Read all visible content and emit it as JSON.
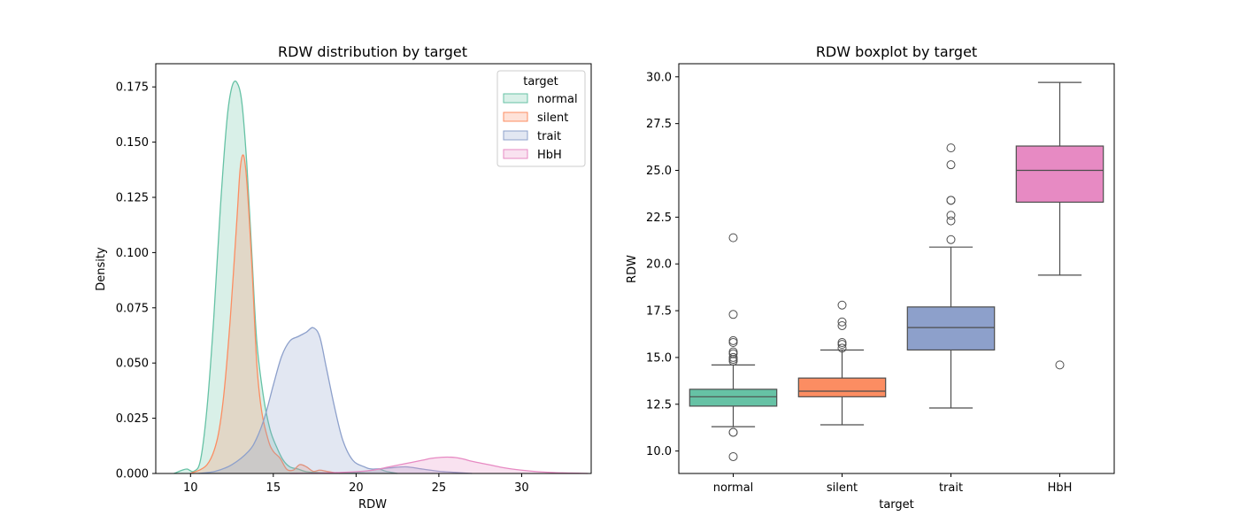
{
  "chart_data": [
    {
      "type": "area",
      "title": "RDW distribution by target",
      "xlabel": "RDW",
      "ylabel": "Density",
      "xlim": [
        7.9,
        34.2
      ],
      "ylim": [
        0,
        0.1855
      ],
      "xticks": [
        "10",
        "15",
        "20",
        "25",
        "30"
      ],
      "xtick_values": [
        10,
        15,
        20,
        25,
        30
      ],
      "yticks": [
        "0.000",
        "0.025",
        "0.050",
        "0.075",
        "0.100",
        "0.125",
        "0.150",
        "0.175"
      ],
      "ytick_values": [
        0,
        0.025,
        0.05,
        0.075,
        0.1,
        0.125,
        0.15,
        0.175
      ],
      "legend": {
        "title": "target",
        "placement": "upper-right",
        "entries": [
          "normal",
          "silent",
          "trait",
          "HbH"
        ]
      },
      "grid": false,
      "series": [
        {
          "name": "normal",
          "color": "#66c2a5",
          "x": [
            9.0,
            9.5,
            9.8,
            10.2,
            10.6,
            11.0,
            11.4,
            11.8,
            12.2,
            12.5,
            12.8,
            13.1,
            13.4,
            13.7,
            14.0,
            14.4,
            14.8,
            15.2,
            15.6,
            16.0,
            16.5,
            17.0,
            18.0,
            19.0,
            20.0,
            21.0,
            21.4,
            21.8,
            22.5
          ],
          "y": [
            0.0,
            0.0015,
            0.002,
            0.001,
            0.006,
            0.03,
            0.07,
            0.12,
            0.16,
            0.175,
            0.177,
            0.168,
            0.14,
            0.1,
            0.06,
            0.035,
            0.02,
            0.012,
            0.006,
            0.003,
            0.002,
            0.0008,
            0.0003,
            0.0002,
            0.0005,
            0.0015,
            0.002,
            0.001,
            0.0
          ]
        },
        {
          "name": "silent",
          "color": "#fc8d62",
          "x": [
            10.0,
            11.0,
            11.6,
            12.0,
            12.4,
            12.8,
            13.0,
            13.2,
            13.4,
            13.7,
            14.0,
            14.3,
            14.7,
            15.0,
            15.4,
            15.8,
            16.2,
            16.6,
            17.0,
            17.4,
            17.8,
            18.2,
            18.6,
            19.0
          ],
          "y": [
            0.0,
            0.004,
            0.015,
            0.035,
            0.07,
            0.115,
            0.138,
            0.144,
            0.132,
            0.095,
            0.05,
            0.028,
            0.015,
            0.01,
            0.007,
            0.002,
            0.0015,
            0.004,
            0.003,
            0.001,
            0.0015,
            0.001,
            0.0005,
            0.0
          ]
        },
        {
          "name": "trait",
          "color": "#8da0cb",
          "x": [
            10.5,
            11.5,
            12.5,
            13.5,
            14.0,
            14.5,
            15.0,
            15.5,
            16.0,
            16.5,
            17.0,
            17.4,
            17.8,
            18.2,
            18.7,
            19.2,
            19.8,
            20.5,
            21.0,
            22.0,
            23.0,
            24.0,
            25.0,
            26.0,
            27.0
          ],
          "y": [
            0.0,
            0.001,
            0.004,
            0.01,
            0.016,
            0.026,
            0.04,
            0.053,
            0.06,
            0.062,
            0.064,
            0.066,
            0.062,
            0.048,
            0.03,
            0.015,
            0.006,
            0.003,
            0.002,
            0.0025,
            0.003,
            0.002,
            0.001,
            0.0005,
            0.0
          ]
        },
        {
          "name": "HbH",
          "color": "#e78ac3",
          "x": [
            16.0,
            18.0,
            20.0,
            21.0,
            22.0,
            23.0,
            24.0,
            24.5,
            25.0,
            25.5,
            26.0,
            26.5,
            27.0,
            28.0,
            29.0,
            30.0,
            31.0,
            32.0,
            33.0,
            34.0
          ],
          "y": [
            0.0,
            0.0002,
            0.0008,
            0.0015,
            0.003,
            0.0045,
            0.006,
            0.0068,
            0.0072,
            0.0074,
            0.0072,
            0.0065,
            0.0055,
            0.004,
            0.0025,
            0.0015,
            0.0008,
            0.0004,
            0.0002,
            0.0
          ]
        }
      ]
    },
    {
      "type": "boxplot",
      "title": "RDW boxplot by target",
      "xlabel": "target",
      "ylabel": "RDW",
      "ylim": [
        8.8,
        30.7
      ],
      "categories": [
        "normal",
        "silent",
        "trait",
        "HbH"
      ],
      "yticks": [
        "10.0",
        "12.5",
        "15.0",
        "17.5",
        "20.0",
        "22.5",
        "25.0",
        "27.5",
        "30.0"
      ],
      "ytick_values": [
        10,
        12.5,
        15,
        17.5,
        20,
        22.5,
        25,
        27.5,
        30
      ],
      "grid": false,
      "boxes": [
        {
          "name": "normal",
          "color": "#66c2a5",
          "whislo": 11.3,
          "q1": 12.4,
          "med": 12.9,
          "q3": 13.3,
          "whishi": 14.6,
          "fliers": [
            9.7,
            11.0,
            11.0,
            14.8,
            14.9,
            15.0,
            15.2,
            15.3,
            15.8,
            15.9,
            17.3,
            21.4
          ]
        },
        {
          "name": "silent",
          "color": "#fc8d62",
          "whislo": 11.4,
          "q1": 12.9,
          "med": 13.2,
          "q3": 13.9,
          "whishi": 15.4,
          "fliers": [
            15.5,
            15.7,
            15.8,
            16.7,
            16.9,
            17.8
          ]
        },
        {
          "name": "trait",
          "color": "#8da0cb",
          "whislo": 12.3,
          "q1": 15.4,
          "med": 16.6,
          "q3": 17.7,
          "whishi": 20.9,
          "fliers": [
            21.3,
            22.3,
            22.6,
            23.4,
            23.4,
            25.3,
            26.2
          ]
        },
        {
          "name": "HbH",
          "color": "#e78ac3",
          "whislo": 19.4,
          "q1": 23.3,
          "med": 25.0,
          "q3": 26.3,
          "whishi": 29.7,
          "fliers": [
            14.6
          ]
        }
      ]
    }
  ]
}
